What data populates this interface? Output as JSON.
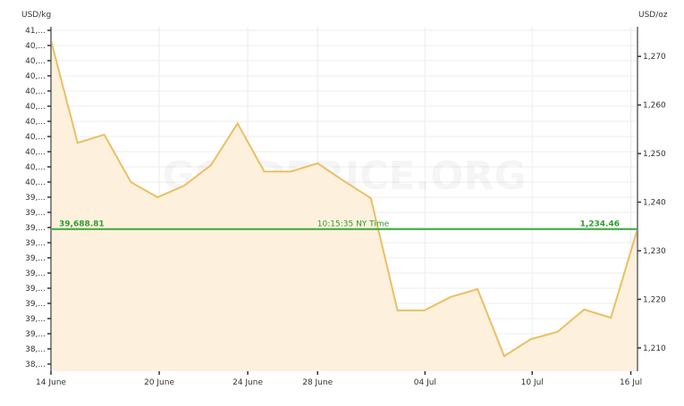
{
  "chart_data": {
    "type": "area",
    "watermark": "GOLDPRICE.ORG",
    "left_axis": {
      "label": "USD/kg",
      "tick_labels": [
        "41,...",
        "40,...",
        "40,...",
        "40,...",
        "40,...",
        "40,...",
        "40,...",
        "40,...",
        "40,...",
        "40,...",
        "40,...",
        "39,...",
        "39,...",
        "39,...",
        "39,...",
        "39,...",
        "39,...",
        "39,...",
        "39,...",
        "39,...",
        "39,...",
        "38,...",
        "38,..."
      ]
    },
    "right_axis": {
      "label": "USD/oz",
      "ticks": [
        1270,
        1260,
        1250,
        1240,
        1230,
        1220,
        1210
      ],
      "tick_labels": [
        "1,270",
        "1,260",
        "1,250",
        "1,240",
        "1,230",
        "1,220",
        "1,210"
      ],
      "ylim": [
        1205.2,
        1276.1
      ]
    },
    "x_axis": {
      "ticks": [
        {
          "label": "14 June",
          "index": 0
        },
        {
          "label": "20 June",
          "index": 4.06
        },
        {
          "label": "24 June",
          "index": 7.38
        },
        {
          "label": "28 June",
          "index": 10.0
        },
        {
          "label": "04 Jul",
          "index": 14.03
        },
        {
          "label": "10 Jul",
          "index": 18.05
        },
        {
          "label": "16 Jul",
          "index": 21.75
        }
      ],
      "xlim": [
        0,
        22
      ]
    },
    "series": [
      {
        "values": [
          1273.3,
          1252.2,
          1253.9,
          1244.1,
          1241.0,
          1243.4,
          1247.6,
          1256.2,
          1246.3,
          1246.3,
          1248.0,
          1244.3,
          1240.8,
          1217.7,
          1217.7,
          1220.5,
          1222.1,
          1208.3,
          1211.8,
          1213.3,
          1217.9,
          1216.2,
          1234.46
        ]
      }
    ],
    "current_price": {
      "usd_kg_label": "39,688.81",
      "usd_oz_label": "1,234.46",
      "usd_oz": 1234.46,
      "time_label": "10:15:35 NY Time"
    },
    "grid": true,
    "colors": {
      "line": "#e9c063",
      "fill": "#fdf0dc",
      "current_line": "#3aa83a",
      "current_text": "#2f9e2f",
      "grid": "#ececec",
      "axis": "#8a8a8a"
    }
  }
}
